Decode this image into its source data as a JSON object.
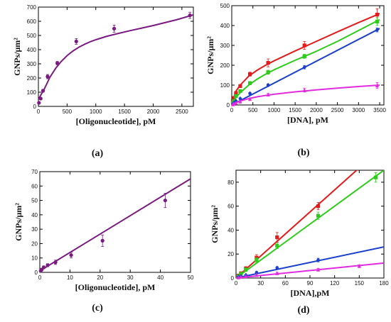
{
  "chart_data": [
    {
      "panel_label": "(a)",
      "type": "scatter",
      "xlabel": "[Oligonucleotide], pM",
      "ylabel": "GNPs/μm²",
      "xlim": [
        0,
        2700
      ],
      "ylim": [
        0,
        700
      ],
      "xticks": [
        0,
        500,
        1000,
        1500,
        2000,
        2500
      ],
      "yticks": [
        0,
        100,
        200,
        300,
        400,
        500,
        600,
        700
      ],
      "series": [
        {
          "color": "#7a1a80",
          "marker": "circle",
          "points": [
            {
              "x": 10,
              "y": 25,
              "err": 5
            },
            {
              "x": 40,
              "y": 55,
              "err": 8
            },
            {
              "x": 80,
              "y": 110,
              "err": 10
            },
            {
              "x": 160,
              "y": 210,
              "err": 15
            },
            {
              "x": 330,
              "y": 305,
              "err": 12
            },
            {
              "x": 660,
              "y": 458,
              "err": 20
            },
            {
              "x": 1320,
              "y": 548,
              "err": 25
            },
            {
              "x": 2640,
              "y": 642,
              "err": 22
            }
          ],
          "fit": {
            "kind": "curve",
            "x": [
              0,
              100,
              200,
              300,
              400,
              500,
              600,
              700,
              800,
              900,
              1000,
              1200,
              1400,
              1600,
              1800,
              2000,
              2200,
              2400,
              2700
            ],
            "y": [
              50,
              120,
              205,
              268,
              318,
              358,
              390,
              416,
              437,
              455,
              470,
              495,
              515,
              534,
              552,
              570,
              590,
              610,
              645
            ]
          }
        }
      ]
    },
    {
      "panel_label": "(b)",
      "type": "scatter",
      "xlabel": "[DNA], pM",
      "ylabel": "GNPs/μm²",
      "xlim": [
        0,
        3600
      ],
      "ylim": [
        0,
        500
      ],
      "xticks": [
        0,
        500,
        1000,
        1500,
        2000,
        2500,
        3000,
        3500
      ],
      "yticks": [
        0,
        100,
        200,
        300,
        400,
        500
      ],
      "series": [
        {
          "color": "#e41b1b",
          "marker": "square",
          "points": [
            {
              "x": 25,
              "y": 20,
              "err": 3
            },
            {
              "x": 50,
              "y": 35,
              "err": 4
            },
            {
              "x": 100,
              "y": 60,
              "err": 5
            },
            {
              "x": 200,
              "y": 95,
              "err": 8
            },
            {
              "x": 430,
              "y": 155,
              "err": 10
            },
            {
              "x": 860,
              "y": 212,
              "err": 20
            },
            {
              "x": 1720,
              "y": 300,
              "err": 20
            },
            {
              "x": 3440,
              "y": 455,
              "err": 30
            }
          ],
          "fit": {
            "kind": "curve",
            "x": [
              0,
              50,
              100,
              200,
              400,
              600,
              800,
              1000,
              1500,
              2000,
              2500,
              3000,
              3500
            ],
            "y": [
              0,
              40,
              70,
              100,
              145,
              175,
              200,
              222,
              272,
              320,
              368,
              415,
              460
            ]
          }
        },
        {
          "color": "#2ecc1a",
          "marker": "square",
          "points": [
            {
              "x": 25,
              "y": 10,
              "err": 3
            },
            {
              "x": 50,
              "y": 20,
              "err": 3
            },
            {
              "x": 100,
              "y": 45,
              "err": 4
            },
            {
              "x": 200,
              "y": 70,
              "err": 5
            },
            {
              "x": 430,
              "y": 110,
              "err": 8
            },
            {
              "x": 860,
              "y": 165,
              "err": 10
            },
            {
              "x": 1720,
              "y": 245,
              "err": 10
            },
            {
              "x": 3440,
              "y": 420,
              "err": 20
            }
          ],
          "fit": {
            "kind": "curve",
            "x": [
              0,
              100,
              200,
              400,
              600,
              800,
              1000,
              1500,
              2000,
              2500,
              3000,
              3500
            ],
            "y": [
              0,
              38,
              62,
              100,
              130,
              155,
              177,
              225,
              270,
              320,
              375,
              430
            ]
          }
        },
        {
          "color": "#1a3fcc",
          "marker": "diamond",
          "points": [
            {
              "x": 25,
              "y": 5,
              "err": 2
            },
            {
              "x": 50,
              "y": 10,
              "err": 2
            },
            {
              "x": 100,
              "y": 20,
              "err": 3
            },
            {
              "x": 200,
              "y": 32,
              "err": 4
            },
            {
              "x": 430,
              "y": 58,
              "err": 5
            },
            {
              "x": 860,
              "y": 100,
              "err": 6
            },
            {
              "x": 1720,
              "y": 190,
              "err": 8
            },
            {
              "x": 3440,
              "y": 378,
              "err": 10
            }
          ],
          "fit": {
            "kind": "line",
            "x": [
              0,
              3500
            ],
            "y": [
              0,
              385
            ]
          }
        },
        {
          "color": "#e12be0",
          "marker": "triangle",
          "points": [
            {
              "x": 25,
              "y": 3,
              "err": 2
            },
            {
              "x": 50,
              "y": 6,
              "err": 2
            },
            {
              "x": 100,
              "y": 10,
              "err": 2
            },
            {
              "x": 200,
              "y": 17,
              "err": 3
            },
            {
              "x": 430,
              "y": 30,
              "err": 4
            },
            {
              "x": 860,
              "y": 52,
              "err": 6
            },
            {
              "x": 1720,
              "y": 75,
              "err": 10
            },
            {
              "x": 3440,
              "y": 98,
              "err": 15
            }
          ],
          "fit": {
            "kind": "curve",
            "x": [
              0,
              100,
              200,
              400,
              600,
              800,
              1000,
              1500,
              2000,
              2500,
              3000,
              3500
            ],
            "y": [
              0,
              12,
              20,
              32,
              41,
              48,
              54,
              66,
              76,
              85,
              93,
              100
            ]
          }
        }
      ]
    },
    {
      "panel_label": "(c)",
      "type": "scatter",
      "xlabel": "[Oligonucleotide], pM",
      "ylabel": "GNPs/μm²",
      "xlim": [
        0,
        50
      ],
      "ylim": [
        0,
        70
      ],
      "xticks": [
        0,
        10,
        20,
        30,
        40,
        50
      ],
      "yticks": [
        0,
        10,
        20,
        30,
        40,
        50,
        60,
        70
      ],
      "series": [
        {
          "color": "#7a1a80",
          "marker": "circle",
          "points": [
            {
              "x": 0.3,
              "y": 1,
              "err": 0.5
            },
            {
              "x": 0.65,
              "y": 2,
              "err": 0.5
            },
            {
              "x": 1.3,
              "y": 3.5,
              "err": 1
            },
            {
              "x": 2.6,
              "y": 5,
              "err": 1
            },
            {
              "x": 5.2,
              "y": 7,
              "err": 1.5
            },
            {
              "x": 10.4,
              "y": 12,
              "err": 2
            },
            {
              "x": 20.8,
              "y": 22,
              "err": 4
            },
            {
              "x": 41.6,
              "y": 50,
              "err": 5
            }
          ],
          "fit": {
            "kind": "line",
            "x": [
              0,
              50
            ],
            "y": [
              1,
              65
            ]
          }
        }
      ]
    },
    {
      "panel_label": "(d)",
      "type": "scatter",
      "xlabel": "[DNA],pM",
      "ylabel": "GNPs/μm²",
      "xlim": [
        0,
        180
      ],
      "ylim": [
        0,
        90
      ],
      "xticks": [
        0,
        30,
        60,
        90,
        120,
        150,
        180
      ],
      "yticks": [
        0,
        20,
        40,
        60,
        80
      ],
      "series": [
        {
          "color": "#e41b1b",
          "marker": "square",
          "points": [
            {
              "x": 3,
              "y": 2,
              "err": 1
            },
            {
              "x": 6,
              "y": 4,
              "err": 1
            },
            {
              "x": 12,
              "y": 8,
              "err": 1.5
            },
            {
              "x": 25,
              "y": 17,
              "err": 2.5
            },
            {
              "x": 50,
              "y": 34,
              "err": 4
            },
            {
              "x": 100,
              "y": 60,
              "err": 3
            }
          ],
          "fit": {
            "kind": "line",
            "x": [
              0,
              155
            ],
            "y": [
              0,
              95
            ]
          }
        },
        {
          "color": "#2ecc1a",
          "marker": "square",
          "points": [
            {
              "x": 3,
              "y": 1.5,
              "err": 1
            },
            {
              "x": 6,
              "y": 3.5,
              "err": 1
            },
            {
              "x": 12,
              "y": 7,
              "err": 1.5
            },
            {
              "x": 25,
              "y": 15,
              "err": 2
            },
            {
              "x": 50,
              "y": 27,
              "err": 2.5
            },
            {
              "x": 100,
              "y": 52,
              "err": 3
            },
            {
              "x": 170,
              "y": 84,
              "err": 4
            }
          ],
          "fit": {
            "kind": "line",
            "x": [
              0,
              180
            ],
            "y": [
              0,
              90
            ]
          }
        },
        {
          "color": "#1a3fcc",
          "marker": "diamond",
          "points": [
            {
              "x": 3,
              "y": 1,
              "err": 0.5
            },
            {
              "x": 6,
              "y": 1.5,
              "err": 0.5
            },
            {
              "x": 12,
              "y": 2.5,
              "err": 0.5
            },
            {
              "x": 25,
              "y": 4.5,
              "err": 1
            },
            {
              "x": 50,
              "y": 8.5,
              "err": 1
            },
            {
              "x": 100,
              "y": 15,
              "err": 1.5
            }
          ],
          "fit": {
            "kind": "line",
            "x": [
              0,
              180
            ],
            "y": [
              0,
              26
            ]
          }
        },
        {
          "color": "#e12be0",
          "marker": "triangle",
          "points": [
            {
              "x": 3,
              "y": 0.5,
              "err": 0.3
            },
            {
              "x": 6,
              "y": 1,
              "err": 0.3
            },
            {
              "x": 12,
              "y": 1.5,
              "err": 0.4
            },
            {
              "x": 25,
              "y": 2.5,
              "err": 0.5
            },
            {
              "x": 50,
              "y": 4,
              "err": 0.8
            },
            {
              "x": 100,
              "y": 7,
              "err": 1
            },
            {
              "x": 150,
              "y": 10,
              "err": 1
            }
          ],
          "fit": {
            "kind": "line",
            "x": [
              0,
              180
            ],
            "y": [
              0,
              12.5
            ]
          }
        }
      ]
    }
  ]
}
